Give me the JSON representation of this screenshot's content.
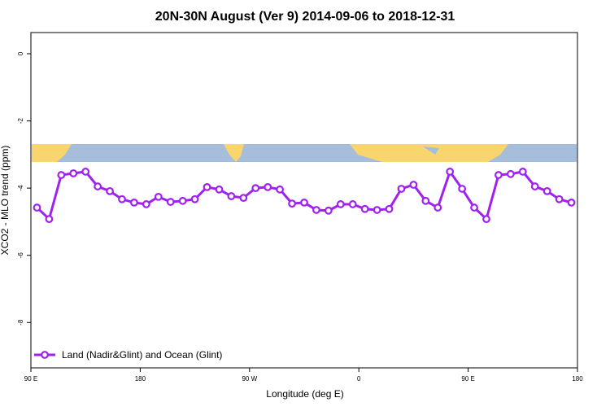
{
  "chart_data": {
    "type": "line",
    "title": "20N-30N August (Ver 9)   2014-09-06 to 2018-12-31",
    "x_label": "Longitude (deg E)",
    "y_label": "XCO2 - MLO trend (ppm)",
    "x": [
      95,
      105,
      115,
      125,
      135,
      145,
      155,
      165,
      175,
      185,
      195,
      205,
      215,
      225,
      235,
      245,
      255,
      265,
      275,
      285,
      295,
      305,
      315,
      325,
      335,
      345,
      355,
      365,
      375,
      385,
      395,
      405,
      415,
      425,
      435,
      445,
      455,
      465,
      475,
      485,
      495,
      505,
      515,
      525,
      535
    ],
    "series": [
      {
        "name": "Land (Nadir&Glint) and Ocean (Glint)",
        "color": "#a020f0",
        "values": [
          -4.58,
          -4.92,
          -3.61,
          -3.56,
          -3.51,
          -3.95,
          -4.09,
          -4.33,
          -4.43,
          -4.48,
          -4.26,
          -4.41,
          -4.38,
          -4.33,
          -3.97,
          -4.04,
          -4.24,
          -4.29,
          -4.0,
          -3.97,
          -4.04,
          -4.46,
          -4.43,
          -4.65,
          -4.67,
          -4.48,
          -4.48,
          -4.62,
          -4.65,
          -4.62,
          -4.02,
          -3.9,
          -4.38,
          -4.58,
          -3.51,
          -4.02,
          -4.58,
          -4.92,
          -3.61,
          -3.58,
          -3.51,
          -3.95,
          -4.09,
          -4.33,
          -4.43
        ]
      }
    ],
    "xlim": [
      90,
      540
    ],
    "xticks": [
      {
        "value": 90,
        "label": "90 E"
      },
      {
        "value": 180,
        "label": "180"
      },
      {
        "value": 270,
        "label": "90 W"
      },
      {
        "value": 360,
        "label": "0"
      },
      {
        "value": 450,
        "label": "90 E"
      },
      {
        "value": 540,
        "label": "180"
      }
    ],
    "ylim": [
      -9.35,
      0.63
    ],
    "yticks": [
      0,
      -2,
      -4,
      -6,
      -8
    ],
    "legend": "bottom-left"
  }
}
